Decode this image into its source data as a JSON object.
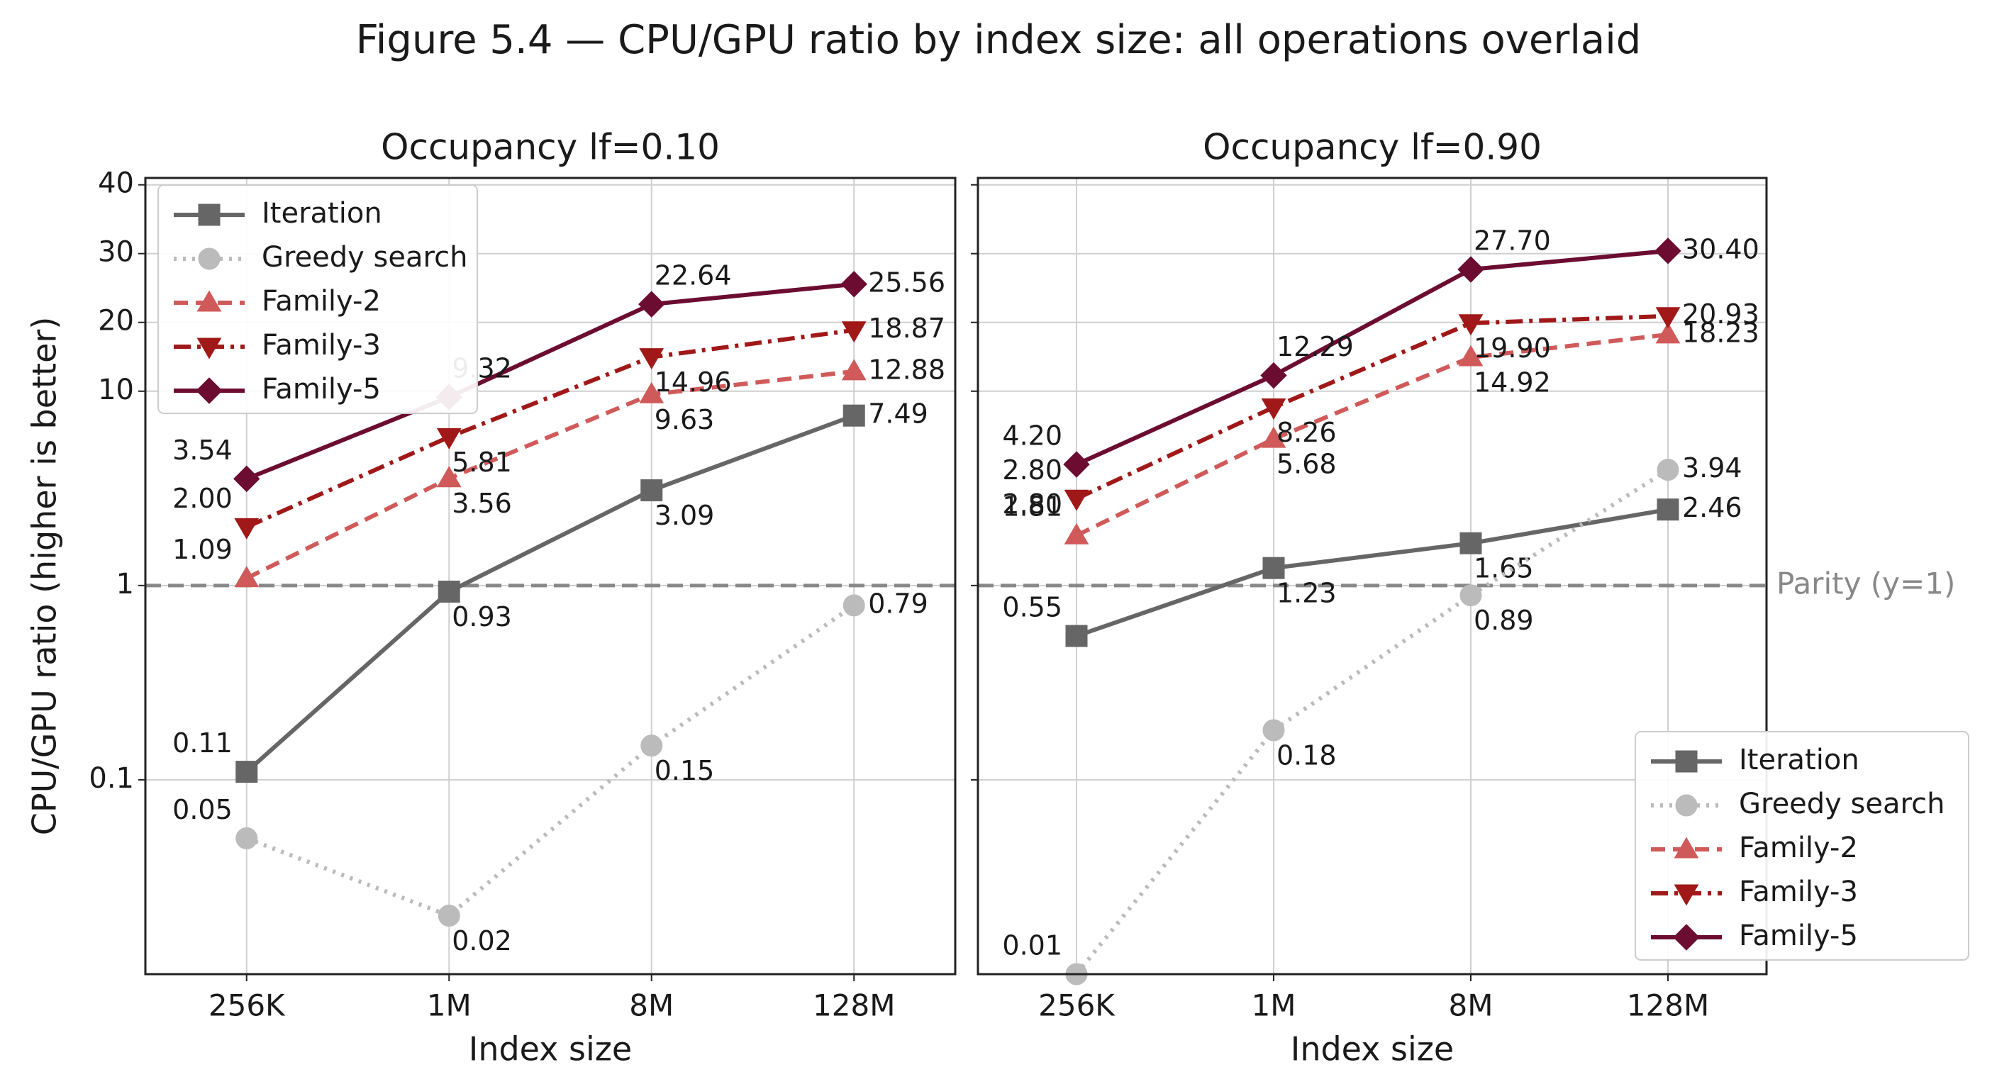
{
  "title": "Figure 5.4 — CPU/GPU ratio by index size: all operations overlaid",
  "chart_data": [
    {
      "type": "line",
      "title": "Occupancy lf=0.10",
      "xlabel": "Index size",
      "ylabel": "CPU/GPU ratio (higher is better)",
      "categories": [
        "256K",
        "1M",
        "8M",
        "128M"
      ],
      "ylim": [
        0.01,
        41
      ],
      "yticks": [
        0.1,
        1,
        10,
        20,
        30,
        40
      ],
      "yscale": "log-linear",
      "grid": true,
      "legend": "upper left",
      "reference_line": {
        "value": 1
      },
      "series": [
        {
          "name": "Iteration",
          "color": "#666666",
          "marker": "square",
          "linestyle": "solid",
          "values": [
            0.11,
            0.93,
            3.09,
            7.49
          ],
          "value_labels": [
            "0.11",
            "0.93",
            "3.09",
            "7.49"
          ]
        },
        {
          "name": "Greedy search",
          "color": "#bbbbbb",
          "marker": "circle",
          "linestyle": "dotted",
          "values": [
            0.05,
            0.02,
            0.15,
            0.79
          ],
          "value_labels": [
            "0.05",
            "0.02",
            "0.15",
            "0.79"
          ]
        },
        {
          "name": "Family-2",
          "color": "#d05a5a",
          "marker": "triangle-up",
          "linestyle": "dashed",
          "values": [
            1.09,
            3.56,
            9.63,
            12.88
          ],
          "value_labels": [
            "1.09",
            "3.56",
            "9.63",
            "12.88"
          ]
        },
        {
          "name": "Family-3",
          "color": "#a01818",
          "marker": "triangle-down",
          "linestyle": "dashdot",
          "values": [
            2,
            5.81,
            14.96,
            18.87
          ],
          "value_labels": [
            "2.00",
            "5.81",
            "14.96",
            "18.87"
          ]
        },
        {
          "name": "Family-5",
          "color": "#6b0c30",
          "marker": "diamond",
          "linestyle": "solid",
          "values": [
            3.54,
            9.32,
            22.64,
            25.56
          ],
          "value_labels": [
            "3.54",
            "9.32",
            "22.64",
            "25.56"
          ]
        }
      ]
    },
    {
      "type": "line",
      "title": "Occupancy lf=0.90",
      "xlabel": "Index size",
      "categories": [
        "256K",
        "1M",
        "8M",
        "128M"
      ],
      "ylim": [
        0.01,
        41
      ],
      "yscale": "log-linear",
      "sharey": true,
      "grid": true,
      "legend": "lower right",
      "reference_line": {
        "value": 1,
        "label": "Parity (y=1)"
      },
      "annotations": [
        {
          "text": "2.80",
          "x": "256K",
          "y": 2.8
        }
      ],
      "series": [
        {
          "name": "Iteration",
          "color": "#666666",
          "marker": "square",
          "linestyle": "solid",
          "values": [
            0.55,
            1.23,
            1.65,
            2.46
          ],
          "value_labels": [
            "0.55",
            "1.23",
            "1.65",
            "2.46"
          ]
        },
        {
          "name": "Greedy search",
          "color": "#bbbbbb",
          "marker": "circle",
          "linestyle": "dotted",
          "values": [
            0.01,
            0.18,
            0.89,
            3.94
          ],
          "value_labels": [
            "0.01",
            "0.18",
            "0.89",
            "3.94"
          ]
        },
        {
          "name": "Family-2",
          "color": "#d05a5a",
          "marker": "triangle-up",
          "linestyle": "dashed",
          "values": [
            1.81,
            5.68,
            14.92,
            18.23
          ],
          "value_labels": [
            "1.81",
            "5.68",
            "14.92",
            "18.23"
          ]
        },
        {
          "name": "Family-3",
          "color": "#a01818",
          "marker": "triangle-down",
          "linestyle": "dashdot",
          "values": [
            2.8,
            8.26,
            19.9,
            20.93
          ],
          "value_labels": [
            "2.80",
            "8.26",
            "19.90",
            "20.93"
          ]
        },
        {
          "name": "Family-5",
          "color": "#6b0c30",
          "marker": "diamond",
          "linestyle": "solid",
          "values": [
            4.2,
            12.29,
            27.7,
            30.4
          ],
          "value_labels": [
            "4.20",
            "12.29",
            "27.70",
            "30.40"
          ]
        }
      ]
    }
  ]
}
